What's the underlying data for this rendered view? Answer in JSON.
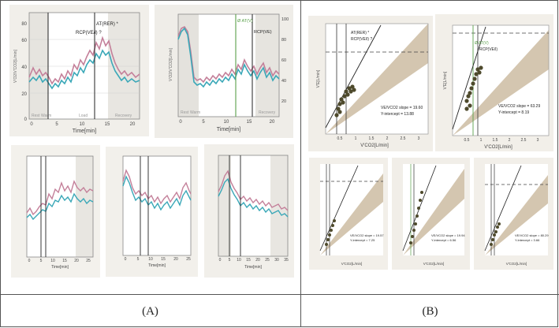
{
  "captions": {
    "left": "(A)",
    "right": "(B)"
  },
  "panel_a": {
    "main1": {
      "ylabel": "V'O2/V'CO2[L/min]",
      "y_ticks": [
        "80",
        "60",
        "40",
        "20",
        "0"
      ],
      "x_ticks": [
        "0",
        "5",
        "10",
        "15",
        "20"
      ],
      "xlabel": "Time[min]",
      "markers": [
        "RCP(VE/l) ?",
        "AT(RER) *"
      ],
      "phases": [
        "Rest",
        "Warm",
        "Load",
        "Recovery"
      ]
    },
    "main2": {
      "ylabel": "V'O2/V'CO2[L/min]",
      "y_ticks": [
        "100",
        "80",
        "60",
        "40",
        "20"
      ],
      "x_ticks": [
        "0",
        "5",
        "10",
        "15",
        "20"
      ],
      "xlabel": "Time[min]",
      "markers": [
        "Ø AT(V)",
        "RCP(VE)"
      ],
      "phases": [
        "Rest",
        "Warm",
        "Recovery"
      ]
    },
    "small1": {
      "x_ticks": [
        "0",
        "5",
        "10",
        "15",
        "20",
        "25"
      ],
      "xlabel": "Time[min]"
    },
    "small2": {
      "x_ticks": [
        "0",
        "5",
        "10",
        "15",
        "20",
        "25"
      ],
      "xlabel": "Time[min]"
    },
    "small3": {
      "x_ticks": [
        "0",
        "5",
        "10",
        "15",
        "20",
        "25",
        "30",
        "35"
      ],
      "xlabel": "Time[min]"
    }
  },
  "panel_b": {
    "top1": {
      "markers": [
        "AT(RER) *",
        "RCP(VE/l) ?"
      ],
      "ylabel": "V'E[L/min]",
      "xlabel": "V'CO2[L/min]",
      "annot1": "VE/VCO2 slope = 19.60",
      "annot2": "Y-intercept = 13.88",
      "x_ticks": [
        "0.5",
        "1",
        "1.5",
        "2",
        "2.5",
        "3"
      ]
    },
    "top2": {
      "markers": [
        "Ø AT(V)",
        "RCP(VE/l)"
      ],
      "ylabel": "V'E[L/min]",
      "xlabel": "V'CO2[L/min]",
      "annot1": "VE/VCO2 slope = 63.29",
      "annot2": "Y-intercept = 8.19",
      "x_ticks": [
        "0.5",
        "1",
        "1.5",
        "2",
        "2.5",
        "3"
      ]
    },
    "small1": {
      "annot1": "VE/VCO2 slope = 19.57",
      "annot2": "Y-intercept = 7.25",
      "xlabel": "V'CO2[L/min]"
    },
    "small2": {
      "annot1": "VE/VCO2 slope = 19.94",
      "annot2": "Y-intercept = 6.56",
      "xlabel": "V'CO2[L/min]"
    },
    "small3": {
      "annot1": "VE/VCO2 slope = 80.29",
      "annot2": "Y-intercept = 3.66",
      "xlabel": "V'CO2[L/min]"
    }
  },
  "colors": {
    "pink": "#c4809a",
    "teal": "#3ba8b8",
    "olive": "#4e4a2c",
    "band": "#d4c6b0",
    "paper": "#f0ede7"
  }
}
